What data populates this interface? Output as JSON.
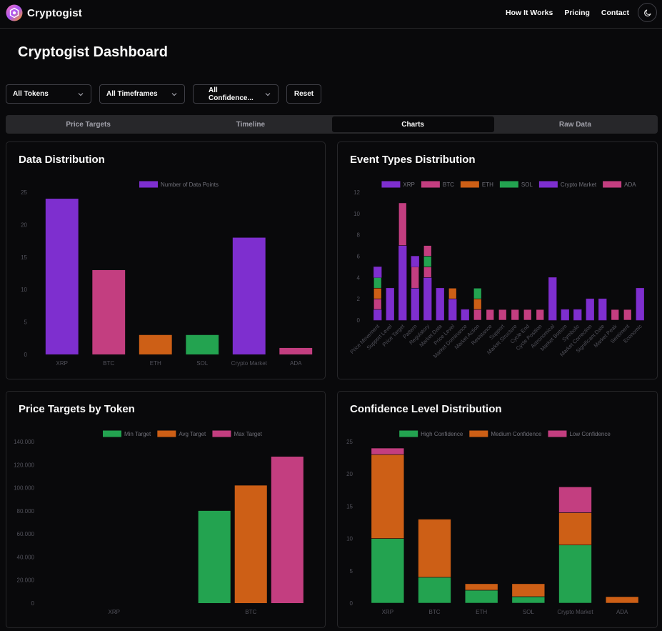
{
  "app": {
    "name": "Cryptogist"
  },
  "nav": {
    "how_it_works": "How It Works",
    "pricing": "Pricing",
    "contact": "Contact"
  },
  "page": {
    "title": "Cryptogist Dashboard"
  },
  "filters": {
    "token": "All Tokens",
    "timeframe": "All Timeframes",
    "confidence": "All Confidence...",
    "reset": "Reset"
  },
  "tabs": [
    "Price Targets",
    "Timeline",
    "Charts",
    "Raw Data"
  ],
  "active_tab": "Charts",
  "colors": {
    "purple": "#7e2fcf",
    "pink": "#c33e80",
    "orange": "#cd5f16",
    "green": "#23a350",
    "axis": "#52525b",
    "legend_text": "#71717a"
  },
  "cards": {
    "distribution": {
      "title": "Data Distribution"
    },
    "event_types": {
      "title": "Event Types Distribution"
    },
    "price_targets": {
      "title": "Price Targets by Token"
    },
    "confidence": {
      "title": "Confidence Level Distribution"
    }
  },
  "chart_data": [
    {
      "id": "distribution",
      "type": "bar",
      "title": "Data Distribution",
      "categories": [
        "XRP",
        "BTC",
        "ETH",
        "SOL",
        "Crypto Market",
        "ADA"
      ],
      "series": [
        {
          "name": "Number of Data Points",
          "values": [
            24,
            13,
            3,
            3,
            18,
            1
          ]
        }
      ],
      "bar_colors": [
        "#7e2fcf",
        "#c33e80",
        "#cd5f16",
        "#23a350",
        "#7e2fcf",
        "#c33e80"
      ],
      "legend_color": "#7e2fcf",
      "yticks": [
        "0",
        "5",
        "10",
        "15",
        "20",
        "25"
      ],
      "ylim": [
        0,
        25
      ]
    },
    {
      "id": "event_types",
      "type": "bar",
      "stacked": true,
      "title": "Event Types Distribution",
      "categories": [
        "Price Movement",
        "Support Level",
        "Price Target",
        "Pattern",
        "Regulatory",
        "Market Data",
        "Price Level",
        "Market Dominance",
        "Market Action",
        "Resistance",
        "Support",
        "Market Structure",
        "Cycle End",
        "Cycle Position",
        "Astronomical",
        "Market Bottom",
        "Symbolic",
        "Market Correction",
        "Significant Date",
        "Market Peak",
        "Sentiment",
        "Economic"
      ],
      "series": [
        {
          "name": "XRP",
          "color": "#7e2fcf",
          "values": [
            1,
            3,
            7,
            3,
            4,
            3,
            2,
            1,
            0,
            0,
            0,
            0,
            0,
            0,
            0,
            0,
            0,
            0,
            0,
            0,
            0,
            0
          ]
        },
        {
          "name": "BTC",
          "color": "#c33e80",
          "values": [
            1,
            0,
            4,
            2,
            1,
            0,
            0,
            0,
            1,
            1,
            1,
            1,
            1,
            1,
            0,
            0,
            0,
            0,
            0,
            1,
            1,
            0
          ]
        },
        {
          "name": "ETH",
          "color": "#cd5f16",
          "values": [
            1,
            0,
            0,
            0,
            0,
            0,
            1,
            0,
            1,
            0,
            0,
            0,
            0,
            0,
            0,
            0,
            0,
            0,
            0,
            0,
            0,
            0
          ]
        },
        {
          "name": "SOL",
          "color": "#23a350",
          "values": [
            1,
            0,
            0,
            0,
            1,
            0,
            0,
            0,
            1,
            0,
            0,
            0,
            0,
            0,
            0,
            0,
            0,
            0,
            0,
            0,
            0,
            0
          ]
        },
        {
          "name": "Crypto Market",
          "color": "#7e2fcf",
          "values": [
            1,
            0,
            0,
            1,
            0,
            0,
            0,
            0,
            0,
            0,
            0,
            0,
            0,
            0,
            4,
            1,
            1,
            2,
            2,
            0,
            0,
            3
          ]
        },
        {
          "name": "ADA",
          "color": "#c33e80",
          "values": [
            0,
            0,
            0,
            0,
            1,
            0,
            0,
            0,
            0,
            0,
            0,
            0,
            0,
            0,
            0,
            0,
            0,
            0,
            0,
            0,
            0,
            0
          ]
        }
      ],
      "yticks": [
        "0",
        "2",
        "4",
        "6",
        "8",
        "10",
        "12"
      ],
      "ylim": [
        0,
        12
      ]
    },
    {
      "id": "price_targets",
      "type": "bar",
      "title": "Price Targets by Token",
      "categories": [
        "XRP",
        "BTC"
      ],
      "series": [
        {
          "name": "Min Target",
          "color": "#23a350",
          "values": [
            0,
            80000
          ]
        },
        {
          "name": "Avg Target",
          "color": "#cd5f16",
          "values": [
            0,
            102000
          ]
        },
        {
          "name": "Max Target",
          "color": "#c33e80",
          "values": [
            0,
            127000
          ]
        }
      ],
      "yticks": [
        "0",
        "20.000",
        "40.000",
        "60.000",
        "80.000",
        "100.000",
        "120.000",
        "140.000"
      ],
      "ylim": [
        0,
        140000
      ]
    },
    {
      "id": "confidence",
      "type": "bar",
      "stacked": true,
      "title": "Confidence Level Distribution",
      "categories": [
        "XRP",
        "BTC",
        "ETH",
        "SOL",
        "Crypto Market",
        "ADA"
      ],
      "series": [
        {
          "name": "High Confidence",
          "color": "#23a350",
          "values": [
            10,
            4,
            2,
            1,
            9,
            0
          ]
        },
        {
          "name": "Medium Confidence",
          "color": "#cd5f16",
          "values": [
            13,
            9,
            1,
            2,
            5,
            1
          ]
        },
        {
          "name": "Low Confidence",
          "color": "#c33e80",
          "values": [
            1,
            0,
            0,
            0,
            4,
            0
          ]
        }
      ],
      "yticks": [
        "0",
        "5",
        "10",
        "15",
        "20",
        "25"
      ],
      "ylim": [
        0,
        25
      ]
    }
  ]
}
